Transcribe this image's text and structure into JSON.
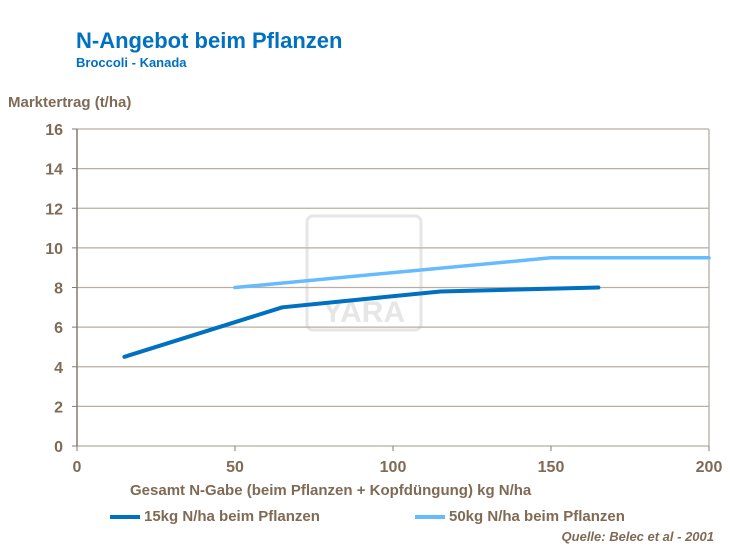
{
  "title": "N-Angebot beim Pflanzen",
  "subtitle": "Broccoli  - Kanada",
  "source": "Quelle: Belec et al - 2001",
  "watermark": "YARA",
  "chart_data": {
    "type": "line",
    "title": "N-Angebot beim Pflanzen",
    "xlabel": "Gesamt N-Gabe (beim Pflanzen + Kopfdüngung) kg N/ha",
    "ylabel": "Marktertrag (t/ha)",
    "xlim": [
      0,
      200
    ],
    "ylim": [
      0,
      16
    ],
    "xticks": [
      0,
      50,
      100,
      150,
      200
    ],
    "yticks": [
      0,
      2,
      4,
      6,
      8,
      10,
      12,
      14,
      16
    ],
    "grid": true,
    "legend": "bottom",
    "series": [
      {
        "name": "15kg N/ha beim Pflanzen",
        "color": "#0070c0",
        "x": [
          15,
          65,
          115,
          165
        ],
        "y": [
          4.5,
          7.0,
          7.8,
          8.0
        ]
      },
      {
        "name": "50kg N/ha beim Pflanzen",
        "color": "#66bbff",
        "x": [
          50,
          150,
          200
        ],
        "y": [
          8.0,
          9.5,
          9.5
        ]
      }
    ]
  }
}
